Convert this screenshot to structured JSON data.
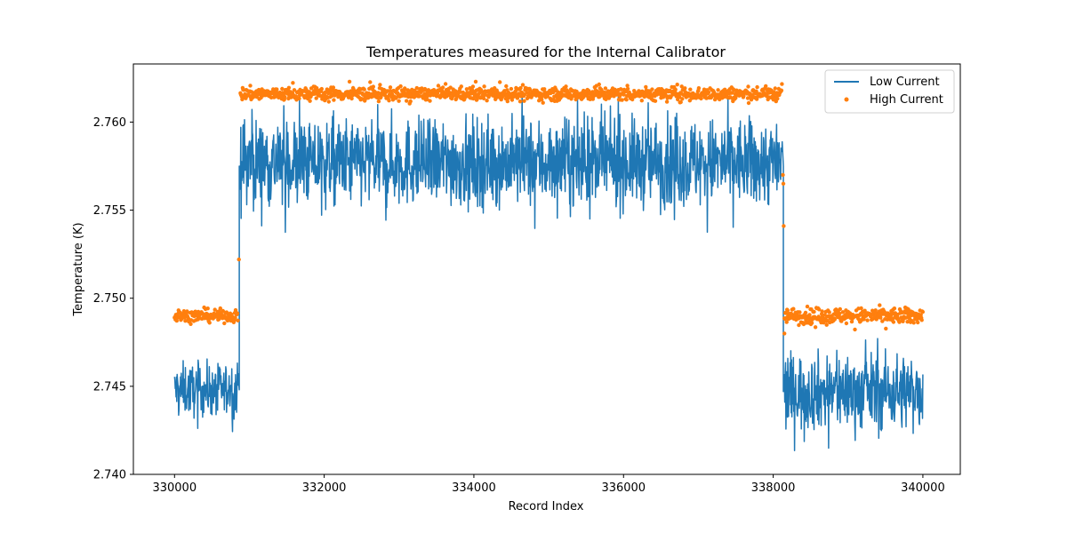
{
  "chart_data": {
    "type": "line",
    "title": "Temperatures measured for the Internal Calibrator",
    "xlabel": "Record Index",
    "ylabel": "Temperature (K)",
    "xlim": [
      329450,
      340500
    ],
    "ylim": [
      2.74,
      2.7633
    ],
    "xticks": [
      330000,
      332000,
      334000,
      336000,
      338000,
      340000
    ],
    "yticks": [
      2.74,
      2.745,
      2.75,
      2.755,
      2.76
    ],
    "ytick_labels": [
      "2.740",
      "2.745",
      "2.750",
      "2.755",
      "2.760"
    ],
    "grid": false,
    "legend": {
      "position": "top-right",
      "entries": [
        "Low Current",
        "High Current"
      ]
    },
    "colors": {
      "low_current": "#1f77b4",
      "high_current": "#ff7f0e"
    },
    "series": [
      {
        "name": "Low Current",
        "style": "line",
        "segments": [
          {
            "x_start": 330000,
            "x_end": 330850,
            "mean": 2.7448,
            "noise_min": 2.7421,
            "noise_max": 2.7471
          },
          {
            "x_start": 330880,
            "x_end": 338120,
            "mean": 2.7577,
            "noise_min": 2.7536,
            "noise_max": 2.762
          },
          {
            "x_start": 338150,
            "x_end": 340000,
            "mean": 2.7447,
            "noise_min": 2.741,
            "noise_max": 2.7483
          }
        ],
        "transitions": [
          {
            "x": 330865,
            "from": 2.7448,
            "to": 2.7575
          },
          {
            "x": 338135,
            "from": 2.7575,
            "to": 2.7447
          }
        ]
      },
      {
        "name": "High Current",
        "style": "scatter",
        "segments": [
          {
            "x_start": 330000,
            "x_end": 330850,
            "mean": 2.749,
            "noise_min": 2.7485,
            "noise_max": 2.7497
          },
          {
            "x_start": 330880,
            "x_end": 338120,
            "mean": 2.7616,
            "noise_min": 2.761,
            "noise_max": 2.7623
          },
          {
            "x_start": 338150,
            "x_end": 340000,
            "mean": 2.749,
            "noise_min": 2.7482,
            "noise_max": 2.7497
          }
        ],
        "transition_points": [
          {
            "x": 330860,
            "y": 2.7522
          },
          {
            "x": 338130,
            "y": 2.757
          },
          {
            "x": 338135,
            "y": 2.7565
          },
          {
            "x": 338140,
            "y": 2.7541
          },
          {
            "x": 338150,
            "y": 2.748
          }
        ]
      }
    ]
  }
}
